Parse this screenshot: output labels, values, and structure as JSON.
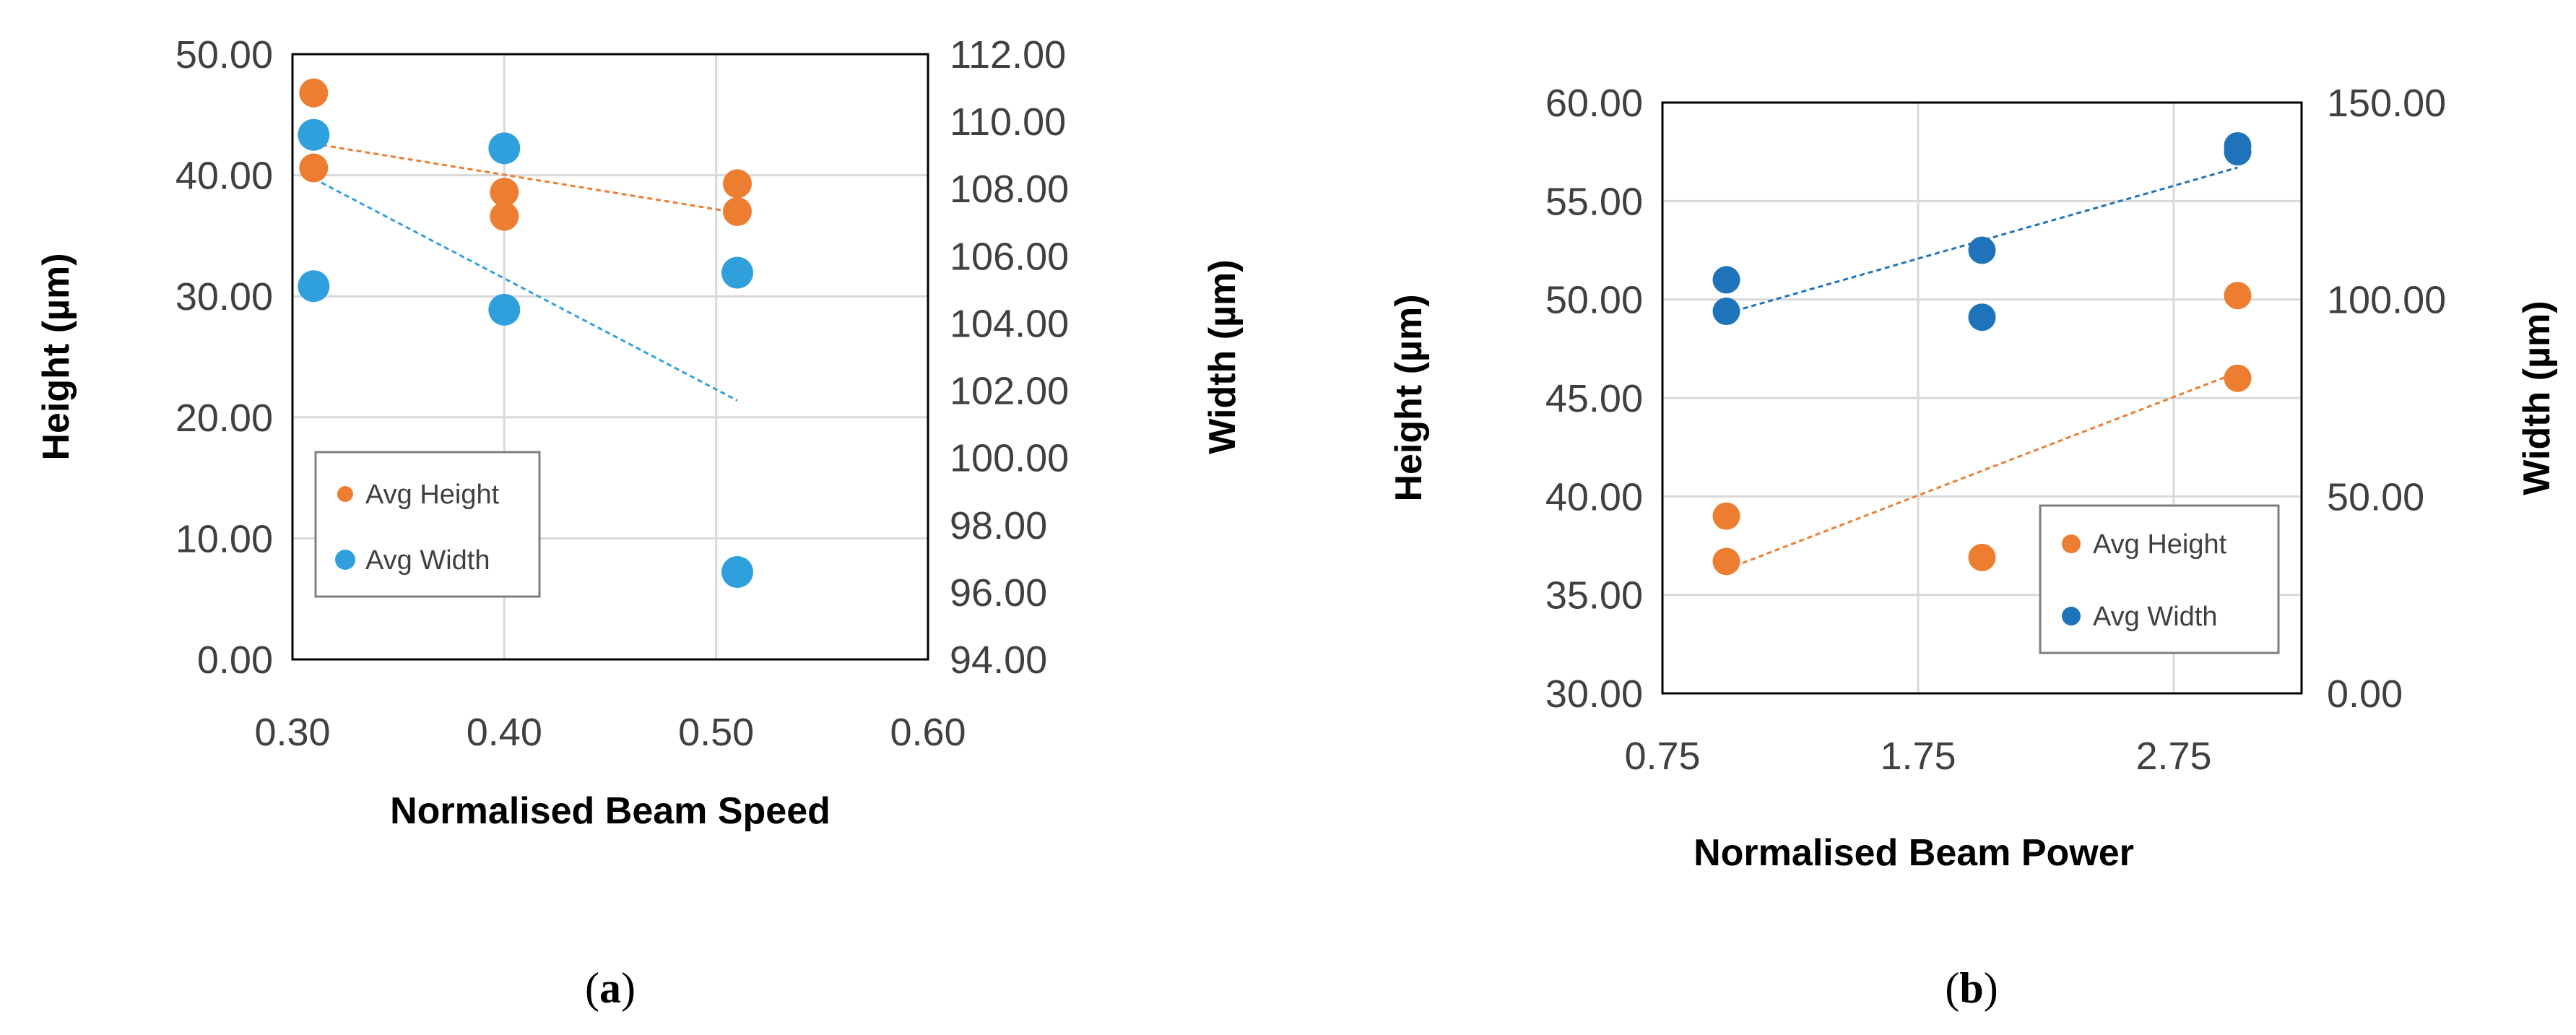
{
  "colors": {
    "height": "#ED7D31",
    "width_a": "#30A0DC",
    "width_b": "#1F73BA",
    "grid": "#D9D9D9",
    "frame": "#000000"
  },
  "chart_data": [
    {
      "panel_label": "a",
      "type": "scatter",
      "xlabel": "Normalised Beam Speed",
      "ylabel_left": "Height (µm)",
      "ylabel_right": "Width (µm)",
      "xlim": [
        0.3,
        0.6
      ],
      "ylim_left": [
        0,
        50
      ],
      "ylim_right": [
        94,
        112
      ],
      "x_ticks": [
        "0.30",
        "0.40",
        "0.50",
        "0.60"
      ],
      "y_left_ticks": [
        "0.00",
        "10.00",
        "20.00",
        "30.00",
        "40.00",
        "50.00"
      ],
      "y_right_ticks": [
        "94.00",
        "96.00",
        "98.00",
        "100.00",
        "102.00",
        "104.00",
        "106.00",
        "108.00",
        "110.00",
        "112.00"
      ],
      "legend": {
        "position": "bottom-left",
        "entries": [
          "Avg Height",
          "Avg Width"
        ]
      },
      "series": [
        {
          "name": "Avg Height",
          "axis": "left",
          "x": [
            0.31,
            0.31,
            0.4,
            0.4,
            0.51,
            0.51
          ],
          "y": [
            46.8,
            40.6,
            38.6,
            36.6,
            39.3,
            37.0
          ],
          "trendline": {
            "x": [
              0.31,
              0.51
            ],
            "y": [
              42.6,
              36.9
            ]
          }
        },
        {
          "name": "Avg Width",
          "axis": "right",
          "x": [
            0.31,
            0.31,
            0.4,
            0.4,
            0.51,
            0.51
          ],
          "y": [
            109.6,
            105.1,
            109.2,
            104.4,
            105.5,
            96.6
          ],
          "trendline": {
            "x": [
              0.31,
              0.51
            ],
            "y": [
              108.3,
              101.7
            ]
          }
        }
      ]
    },
    {
      "panel_label": "b",
      "type": "scatter",
      "xlabel": "Normalised Beam Power",
      "ylabel_left": "Height (µm)",
      "ylabel_right": "Width (µm)",
      "xlim": [
        0.75,
        3.25
      ],
      "ylim_left": [
        30,
        60
      ],
      "ylim_right": [
        0,
        150
      ],
      "x_ticks": [
        "0.75",
        "1.75",
        "2.75"
      ],
      "y_left_ticks": [
        "30.00",
        "35.00",
        "40.00",
        "45.00",
        "50.00",
        "55.00",
        "60.00"
      ],
      "y_right_ticks": [
        "0.00",
        "50.00",
        "100.00",
        "150.00"
      ],
      "legend": {
        "position": "bottom-right",
        "entries": [
          "Avg Height",
          "Avg Width"
        ]
      },
      "series": [
        {
          "name": "Avg Height",
          "axis": "left",
          "x": [
            1.0,
            1.0,
            2.0,
            3.0,
            3.0
          ],
          "y": [
            39.0,
            36.7,
            36.9,
            50.2,
            46.0
          ],
          "trendline": {
            "x": [
              1.0,
              3.0
            ],
            "y": [
              36.3,
              46.3
            ]
          }
        },
        {
          "name": "Avg Width",
          "axis": "right",
          "x": [
            1.0,
            1.0,
            2.0,
            2.0,
            3.0,
            3.0
          ],
          "y": [
            105.0,
            97.0,
            112.5,
            95.5,
            137.5,
            139.0
          ],
          "trendline": {
            "x": [
              1.0,
              3.0
            ],
            "y": [
              96.5,
              133.5
            ]
          }
        }
      ]
    }
  ]
}
